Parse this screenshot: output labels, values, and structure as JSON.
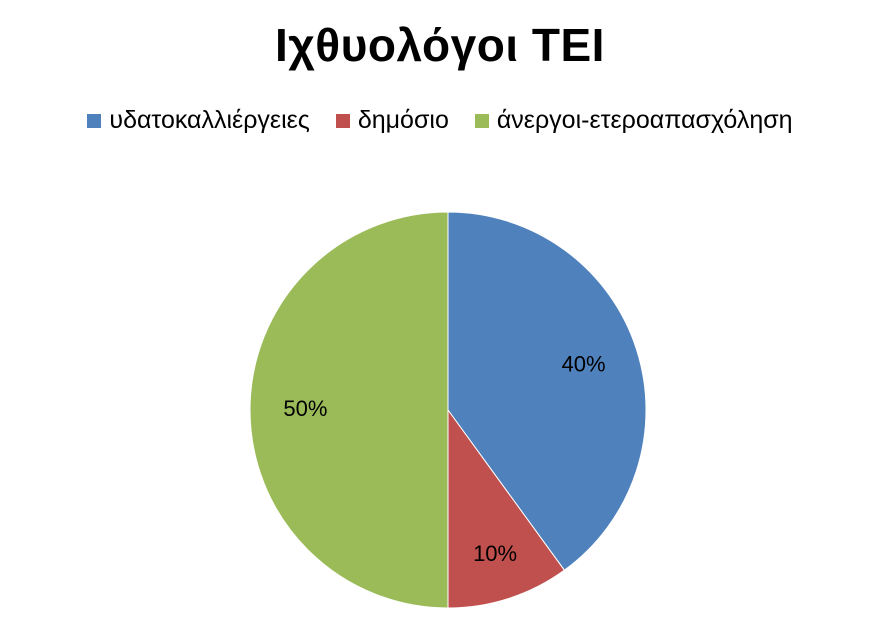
{
  "chart_data": {
    "type": "pie",
    "title": "Ιχθυολόγοι ΤΕΙ",
    "legend_position": "top",
    "categories": [
      "υδατοκαλλιέργειες",
      "δημόσιο",
      "άνεργοι-ετεροαπασχόληση"
    ],
    "values": [
      40,
      10,
      50
    ],
    "data_labels": [
      "40%",
      "10%",
      "50%"
    ],
    "colors": [
      "#4f81bd",
      "#c0504d",
      "#9bbb59"
    ]
  }
}
